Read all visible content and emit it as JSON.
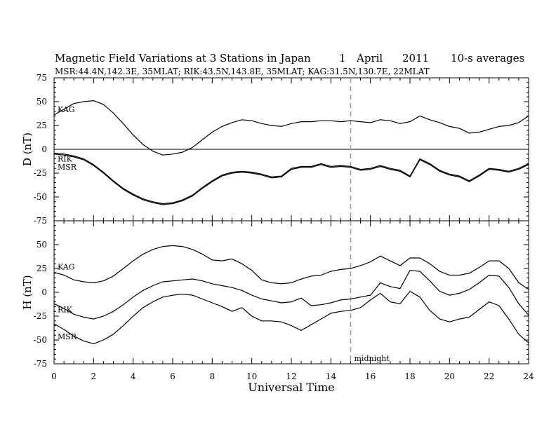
{
  "header": {
    "title": "Magnetic Field Variations at 3 Stations in Japan",
    "day": "1",
    "month": "April",
    "year": "2011",
    "averaging": "10-s averages",
    "stations": "MSR:44.4N,142.3E, 35MLAT;   RIK:43.5N,143.8E, 35MLAT;   KAG:31.5N,130.7E, 22MLAT"
  },
  "chart_data": {
    "type": "line",
    "xlabel": "Universal Time",
    "xlim": [
      0,
      24
    ],
    "xticks": [
      0,
      2,
      4,
      6,
      8,
      10,
      12,
      14,
      16,
      18,
      20,
      22,
      24
    ],
    "marker": {
      "x": 15,
      "label": "midnight"
    },
    "panels": [
      {
        "ylabel": "D (nT)",
        "ylim": [
          -75,
          75
        ],
        "yticks": [
          75,
          50,
          25,
          0,
          -25,
          -50,
          -75
        ],
        "zero_line": true,
        "series": [
          {
            "name": "KAG",
            "x": [
              0,
              0.5,
              1,
              1.5,
              2,
              2.5,
              3,
              3.5,
              4,
              4.5,
              5,
              5.5,
              6,
              6.5,
              7,
              7.5,
              8,
              8.5,
              9,
              9.5,
              10,
              10.5,
              11,
              11.5,
              12,
              12.5,
              13,
              13.5,
              14,
              14.5,
              15,
              15.5,
              16,
              16.5,
              17,
              17.5,
              18,
              18.5,
              19,
              19.5,
              20,
              20.5,
              21,
              21.5,
              22,
              22.5,
              23,
              23.5,
              24
            ],
            "values": [
              36,
              42,
              48,
              50,
              51,
              47,
              38,
              27,
              15,
              5,
              -2,
              -6,
              -5,
              -3,
              2,
              10,
              18,
              24,
              28,
              31,
              30,
              27,
              25,
              24,
              27,
              29,
              29,
              30,
              30,
              29,
              30,
              29,
              28,
              31,
              30,
              27,
              29,
              35,
              31,
              28,
              24,
              22,
              17,
              18,
              21,
              24,
              25,
              28,
              35
            ]
          },
          {
            "name": "RIK",
            "x": [
              0,
              0.5,
              1,
              1.5,
              2,
              2.5,
              3,
              3.5,
              4,
              4.5,
              5,
              5.5,
              6,
              6.5,
              7,
              7.5,
              8,
              8.5,
              9,
              9.5,
              10,
              10.5,
              11,
              11.5,
              12,
              12.5,
              13,
              13.5,
              14,
              14.5,
              15,
              15.5,
              16,
              16.5,
              17,
              17.5,
              18,
              18.5,
              19,
              19.5,
              20,
              20.5,
              21,
              21.5,
              22,
              22.5,
              23,
              23.5,
              24
            ],
            "values": [
              -4,
              -5,
              -7,
              -10,
              -16,
              -24,
              -33,
              -41,
              -47,
              -52,
              -55,
              -57,
              -56,
              -53,
              -48,
              -40,
              -33,
              -27,
              -24,
              -23,
              -24,
              -26,
              -29,
              -28,
              -20,
              -18,
              -18,
              -15,
              -18,
              -17,
              -18,
              -21,
              -20,
              -17,
              -20,
              -22,
              -28,
              -10,
              -15,
              -22,
              -26,
              -28,
              -33,
              -27,
              -20,
              -21,
              -23,
              -20,
              -15
            ]
          },
          {
            "name": "MSR",
            "x": [
              0,
              0.5,
              1,
              1.5,
              2,
              2.5,
              3,
              3.5,
              4,
              4.5,
              5,
              5.5,
              6,
              6.5,
              7,
              7.5,
              8,
              8.5,
              9,
              9.5,
              10,
              10.5,
              11,
              11.5,
              12,
              12.5,
              13,
              13.5,
              14,
              14.5,
              15,
              15.5,
              16,
              16.5,
              17,
              17.5,
              18,
              18.5,
              19,
              19.5,
              20,
              20.5,
              21,
              21.5,
              22,
              22.5,
              23,
              23.5,
              24
            ],
            "values": [
              -5,
              -6,
              -8,
              -11,
              -17,
              -25,
              -34,
              -42,
              -48,
              -53,
              -56,
              -58,
              -57,
              -54,
              -49,
              -41,
              -34,
              -28,
              -25,
              -24,
              -25,
              -27,
              -30,
              -29,
              -21,
              -19,
              -19,
              -16,
              -19,
              -18,
              -19,
              -22,
              -21,
              -18,
              -21,
              -23,
              -29,
              -11,
              -16,
              -23,
              -27,
              -29,
              -34,
              -28,
              -21,
              -22,
              -24,
              -21,
              -16
            ]
          }
        ]
      },
      {
        "ylabel": "H (nT)",
        "ylim": [
          -75,
          75
        ],
        "yticks": [
          75,
          50,
          25,
          0,
          -25,
          -50,
          -75
        ],
        "zero_line": false,
        "series": [
          {
            "name": "KAG",
            "x": [
              0,
              0.5,
              1,
              1.5,
              2,
              2.5,
              3,
              3.5,
              4,
              4.5,
              5,
              5.5,
              6,
              6.5,
              7,
              7.5,
              8,
              8.5,
              9,
              9.5,
              10,
              10.5,
              11,
              11.5,
              12,
              12.5,
              13,
              13.5,
              14,
              14.5,
              15,
              15.5,
              16,
              16.5,
              17,
              17.5,
              18,
              18.5,
              19,
              19.5,
              20,
              20.5,
              21,
              21.5,
              22,
              22.5,
              23,
              23.5,
              24
            ],
            "values": [
              21,
              18,
              13,
              11,
              10,
              12,
              17,
              25,
              33,
              40,
              45,
              48,
              49,
              48,
              45,
              40,
              34,
              33,
              35,
              30,
              23,
              13,
              10,
              9,
              10,
              14,
              17,
              18,
              22,
              24,
              25,
              28,
              32,
              38,
              33,
              28,
              36,
              36,
              30,
              22,
              18,
              18,
              20,
              26,
              33,
              33,
              25,
              10,
              3
            ]
          },
          {
            "name": "RIK",
            "x": [
              0,
              0.5,
              1,
              1.5,
              2,
              2.5,
              3,
              3.5,
              4,
              4.5,
              5,
              5.5,
              6,
              6.5,
              7,
              7.5,
              8,
              8.5,
              9,
              9.5,
              10,
              10.5,
              11,
              11.5,
              12,
              12.5,
              13,
              13.5,
              14,
              14.5,
              15,
              15.5,
              16,
              16.5,
              17,
              17.5,
              18,
              18.5,
              19,
              19.5,
              20,
              20.5,
              21,
              21.5,
              22,
              22.5,
              23,
              23.5,
              24
            ],
            "values": [
              -12,
              -17,
              -23,
              -26,
              -28,
              -25,
              -20,
              -13,
              -5,
              2,
              7,
              11,
              12,
              13,
              14,
              12,
              9,
              7,
              5,
              2,
              -3,
              -7,
              -9,
              -11,
              -10,
              -6,
              -14,
              -13,
              -11,
              -8,
              -7,
              -5,
              -3,
              10,
              6,
              4,
              23,
              22,
              12,
              1,
              -3,
              -1,
              3,
              10,
              18,
              17,
              5,
              -12,
              -24
            ]
          },
          {
            "name": "MSR",
            "x": [
              0,
              0.5,
              1,
              1.5,
              2,
              2.5,
              3,
              3.5,
              4,
              4.5,
              5,
              5.5,
              6,
              6.5,
              7,
              7.5,
              8,
              8.5,
              9,
              9.5,
              10,
              10.5,
              11,
              11.5,
              12,
              12.5,
              13,
              13.5,
              14,
              14.5,
              15,
              15.5,
              16,
              16.5,
              17,
              17.5,
              18,
              18.5,
              19,
              19.5,
              20,
              20.5,
              21,
              21.5,
              22,
              22.5,
              23,
              23.5,
              24
            ],
            "values": [
              -33,
              -39,
              -46,
              -51,
              -54,
              -50,
              -44,
              -35,
              -25,
              -16,
              -10,
              -5,
              -3,
              -2,
              -3,
              -7,
              -11,
              -15,
              -20,
              -16,
              -25,
              -30,
              -30,
              -31,
              -35,
              -40,
              -34,
              -28,
              -22,
              -20,
              -19,
              -16,
              -8,
              -1,
              -10,
              -12,
              1,
              -5,
              -19,
              -28,
              -31,
              -28,
              -26,
              -18,
              -10,
              -14,
              -28,
              -44,
              -53
            ]
          }
        ]
      }
    ]
  }
}
